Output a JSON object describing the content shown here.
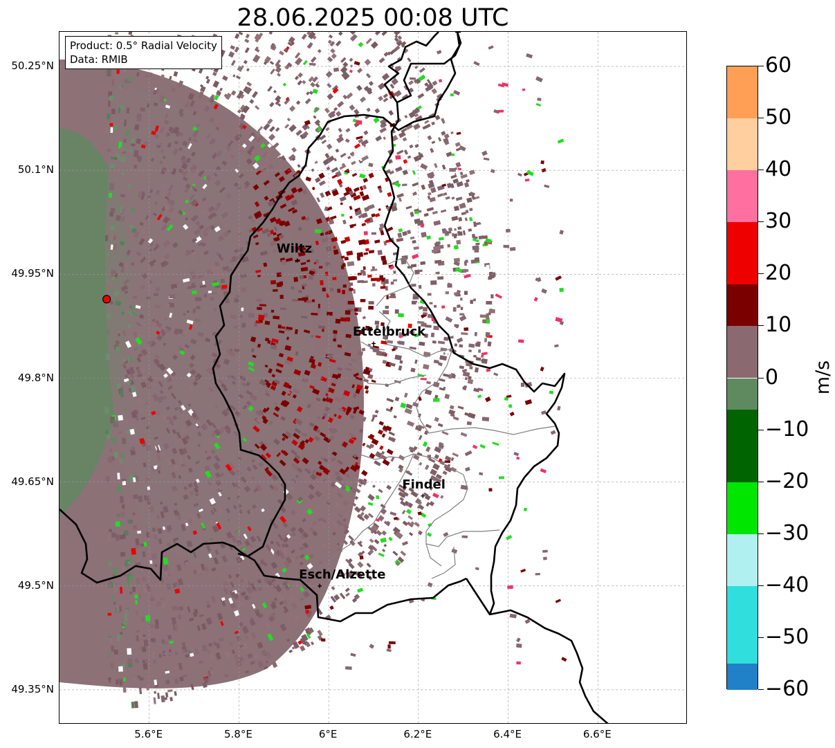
{
  "title": "28.06.2025 00:08 UTC",
  "info": {
    "product": "Product: 0.5° Radial Velocity",
    "data": "Data: RMIB"
  },
  "map": {
    "lon_range": [
      5.4,
      6.8
    ],
    "lat_range": [
      49.3,
      50.3
    ],
    "lat_ticks": [
      "50.25°N",
      "50.1°N",
      "49.95°N",
      "49.8°N",
      "49.65°N",
      "49.5°N",
      "49.35°N"
    ],
    "lon_ticks": [
      "5.6°E",
      "5.8°E",
      "6°E",
      "6.2°E",
      "6.4°E",
      "6.6°E"
    ],
    "radar_site": {
      "lon": 5.505,
      "lat": 49.914
    },
    "cities": [
      {
        "name": "Wiltz",
        "lon": 5.93,
        "lat": 49.97
      },
      {
        "name": "Ettelbruck",
        "lon": 6.1,
        "lat": 49.85
      },
      {
        "name": "Findel",
        "lon": 6.21,
        "lat": 49.63
      },
      {
        "name": "Esch/Alzette",
        "lon": 5.98,
        "lat": 49.5
      }
    ]
  },
  "colorbar": {
    "unit": "m/s",
    "min": -60,
    "max": 60,
    "ticks": [
      "60",
      "50",
      "40",
      "30",
      "20",
      "10",
      "0",
      "−10",
      "−20",
      "−30",
      "−40",
      "−50",
      "−60"
    ],
    "colors": {
      "orange": "#ff9f55",
      "pink": "#ff6f9f",
      "red": "#ee0000",
      "dark_red": "#7a0000",
      "mauve": "#8a6a70",
      "grey_green": "#5f8a5f",
      "dark_green": "#006400",
      "green": "#00e600",
      "light_cyan": "#b0f0f0",
      "cyan": "#30dede",
      "blue": "#2080c8"
    }
  }
}
